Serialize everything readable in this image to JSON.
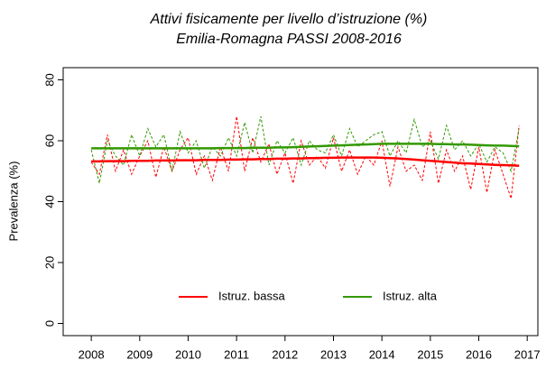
{
  "chart_data": {
    "type": "line",
    "title": "Attivi fisicamente per livello d’istruzione (%)",
    "subtitle": "Emilia-Romagna PASSI 2008-2016",
    "y_label": "Prevalenza (%)",
    "x": [
      2008,
      2008.167,
      2008.333,
      2008.5,
      2008.667,
      2008.833,
      2009,
      2009.167,
      2009.333,
      2009.5,
      2009.667,
      2009.833,
      2010,
      2010.167,
      2010.333,
      2010.5,
      2010.667,
      2010.833,
      2011,
      2011.167,
      2011.333,
      2011.5,
      2011.667,
      2011.833,
      2012,
      2012.167,
      2012.333,
      2012.5,
      2012.667,
      2012.833,
      2013,
      2013.167,
      2013.333,
      2013.5,
      2013.667,
      2013.833,
      2014,
      2014.167,
      2014.333,
      2014.5,
      2014.667,
      2014.833,
      2015,
      2015.167,
      2015.333,
      2015.5,
      2015.667,
      2015.833,
      2016,
      2016.167,
      2016.333,
      2016.5,
      2016.667,
      2016.833
    ],
    "series": [
      {
        "name": "Istruz. bassa",
        "color": "#ff0000",
        "values": [
          53,
          49,
          62,
          50,
          57,
          49,
          55,
          60,
          48,
          58,
          50,
          57,
          61,
          49,
          55,
          47,
          58,
          50,
          68,
          50,
          61,
          53,
          59,
          49,
          56,
          46,
          60,
          52,
          55,
          51,
          61,
          50,
          57,
          49,
          55,
          52,
          60,
          45,
          58,
          50,
          52,
          47,
          63,
          46,
          57,
          50,
          55,
          44,
          58,
          43,
          57,
          49,
          41,
          65
        ],
        "trend": [
          53.2,
          53.2,
          53.3,
          53.3,
          53.3,
          53.4,
          53.4,
          53.4,
          53.5,
          53.5,
          53.5,
          53.6,
          53.6,
          53.6,
          53.7,
          53.7,
          53.7,
          53.8,
          53.8,
          53.9,
          53.9,
          54.0,
          54.0,
          54.1,
          54.1,
          54.2,
          54.2,
          54.3,
          54.3,
          54.4,
          54.4,
          54.5,
          54.5,
          54.5,
          54.5,
          54.5,
          54.4,
          54.3,
          54.2,
          54.0,
          53.8,
          53.6,
          53.4,
          53.2,
          53.0,
          52.8,
          52.6,
          52.5,
          52.4,
          52.2,
          52.1,
          52.0,
          51.9,
          51.8
        ]
      },
      {
        "name": "Istruz. alta",
        "color": "#339900",
        "values": [
          57,
          46,
          60,
          55,
          52,
          62,
          55,
          64,
          58,
          62,
          50,
          63,
          56,
          60,
          51,
          58,
          55,
          61,
          55,
          66,
          56,
          68,
          52,
          60,
          56,
          61,
          52,
          60,
          57,
          56,
          62,
          55,
          64,
          58,
          60,
          62,
          63,
          55,
          60,
          56,
          67,
          58,
          60,
          54,
          65,
          57,
          60,
          55,
          59,
          53,
          58,
          56,
          50,
          64
        ],
        "trend": [
          57.5,
          57.5,
          57.5,
          57.5,
          57.5,
          57.5,
          57.5,
          57.5,
          57.5,
          57.5,
          57.5,
          57.5,
          57.5,
          57.5,
          57.5,
          57.5,
          57.6,
          57.6,
          57.6,
          57.6,
          57.7,
          57.7,
          57.7,
          57.8,
          57.8,
          57.9,
          58.0,
          58.1,
          58.2,
          58.3,
          58.4,
          58.5,
          58.6,
          58.7,
          58.8,
          58.9,
          59.0,
          59.0,
          59.0,
          59.0,
          59.0,
          59.0,
          59.0,
          58.9,
          58.9,
          58.8,
          58.8,
          58.7,
          58.6,
          58.5,
          58.4,
          58.4,
          58.3,
          58.2
        ]
      }
    ],
    "xlim": [
      2007.42,
      2017.22
    ],
    "xticks": [
      2008,
      2009,
      2010,
      2011,
      2012,
      2013,
      2014,
      2015,
      2016,
      2017
    ],
    "ylim": [
      -4,
      84
    ],
    "yticks": [
      0,
      20,
      40,
      60,
      80
    ]
  }
}
